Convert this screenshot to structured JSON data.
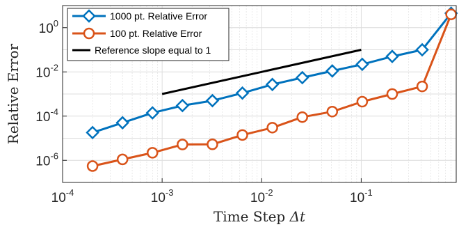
{
  "chart_data": {
    "type": "line",
    "title": "",
    "xlabel": "Time Step",
    "xlabel_symbol": "Δt",
    "ylabel": "Relative Error",
    "xscale": "log",
    "yscale": "log",
    "xlim": [
      0.0001,
      0.9
    ],
    "ylim": [
      1e-07,
      10
    ],
    "grid": true,
    "legend_position": "top-left",
    "x_ticks": [
      {
        "base": "10",
        "exp": "-4",
        "value": 0.0001
      },
      {
        "base": "10",
        "exp": "-3",
        "value": 0.001
      },
      {
        "base": "10",
        "exp": "-2",
        "value": 0.01
      },
      {
        "base": "10",
        "exp": "-1",
        "value": 0.1
      }
    ],
    "y_ticks": [
      {
        "base": "10",
        "exp": "0",
        "value": 1
      },
      {
        "base": "10",
        "exp": "-2",
        "value": 0.01
      },
      {
        "base": "10",
        "exp": "-4",
        "value": 0.0001
      },
      {
        "base": "10",
        "exp": "-6",
        "value": 1e-06
      }
    ],
    "series": [
      {
        "name": "1000 pt. Relative Error",
        "color": "#0072BD",
        "marker": "diamond",
        "x": [
          0.0002,
          0.0004,
          0.0008,
          0.0016,
          0.0032,
          0.0064,
          0.0128,
          0.0256,
          0.0512,
          0.1024,
          0.2048,
          0.4096,
          0.8
        ],
        "y": [
          1.8e-05,
          5e-05,
          0.00014,
          0.0003,
          0.0005,
          0.0011,
          0.0027,
          0.0055,
          0.011,
          0.022,
          0.05,
          0.1,
          4.5
        ]
      },
      {
        "name": "100 pt. Relative Error",
        "color": "#D95319",
        "marker": "circle",
        "x": [
          0.0002,
          0.0004,
          0.0008,
          0.0016,
          0.0032,
          0.0064,
          0.0128,
          0.0256,
          0.0512,
          0.1024,
          0.2048,
          0.4096,
          0.8
        ],
        "y": [
          5.5e-07,
          1.1e-06,
          2.2e-06,
          5.2e-06,
          5.3e-06,
          1.4e-05,
          3e-05,
          9e-05,
          0.00016,
          0.00045,
          0.001,
          0.0022,
          4.0
        ]
      },
      {
        "name": "Reference slope equal to 1",
        "color": "#000000",
        "marker": "none",
        "x": [
          0.001,
          0.1
        ],
        "y": [
          0.001,
          0.1
        ]
      }
    ]
  }
}
